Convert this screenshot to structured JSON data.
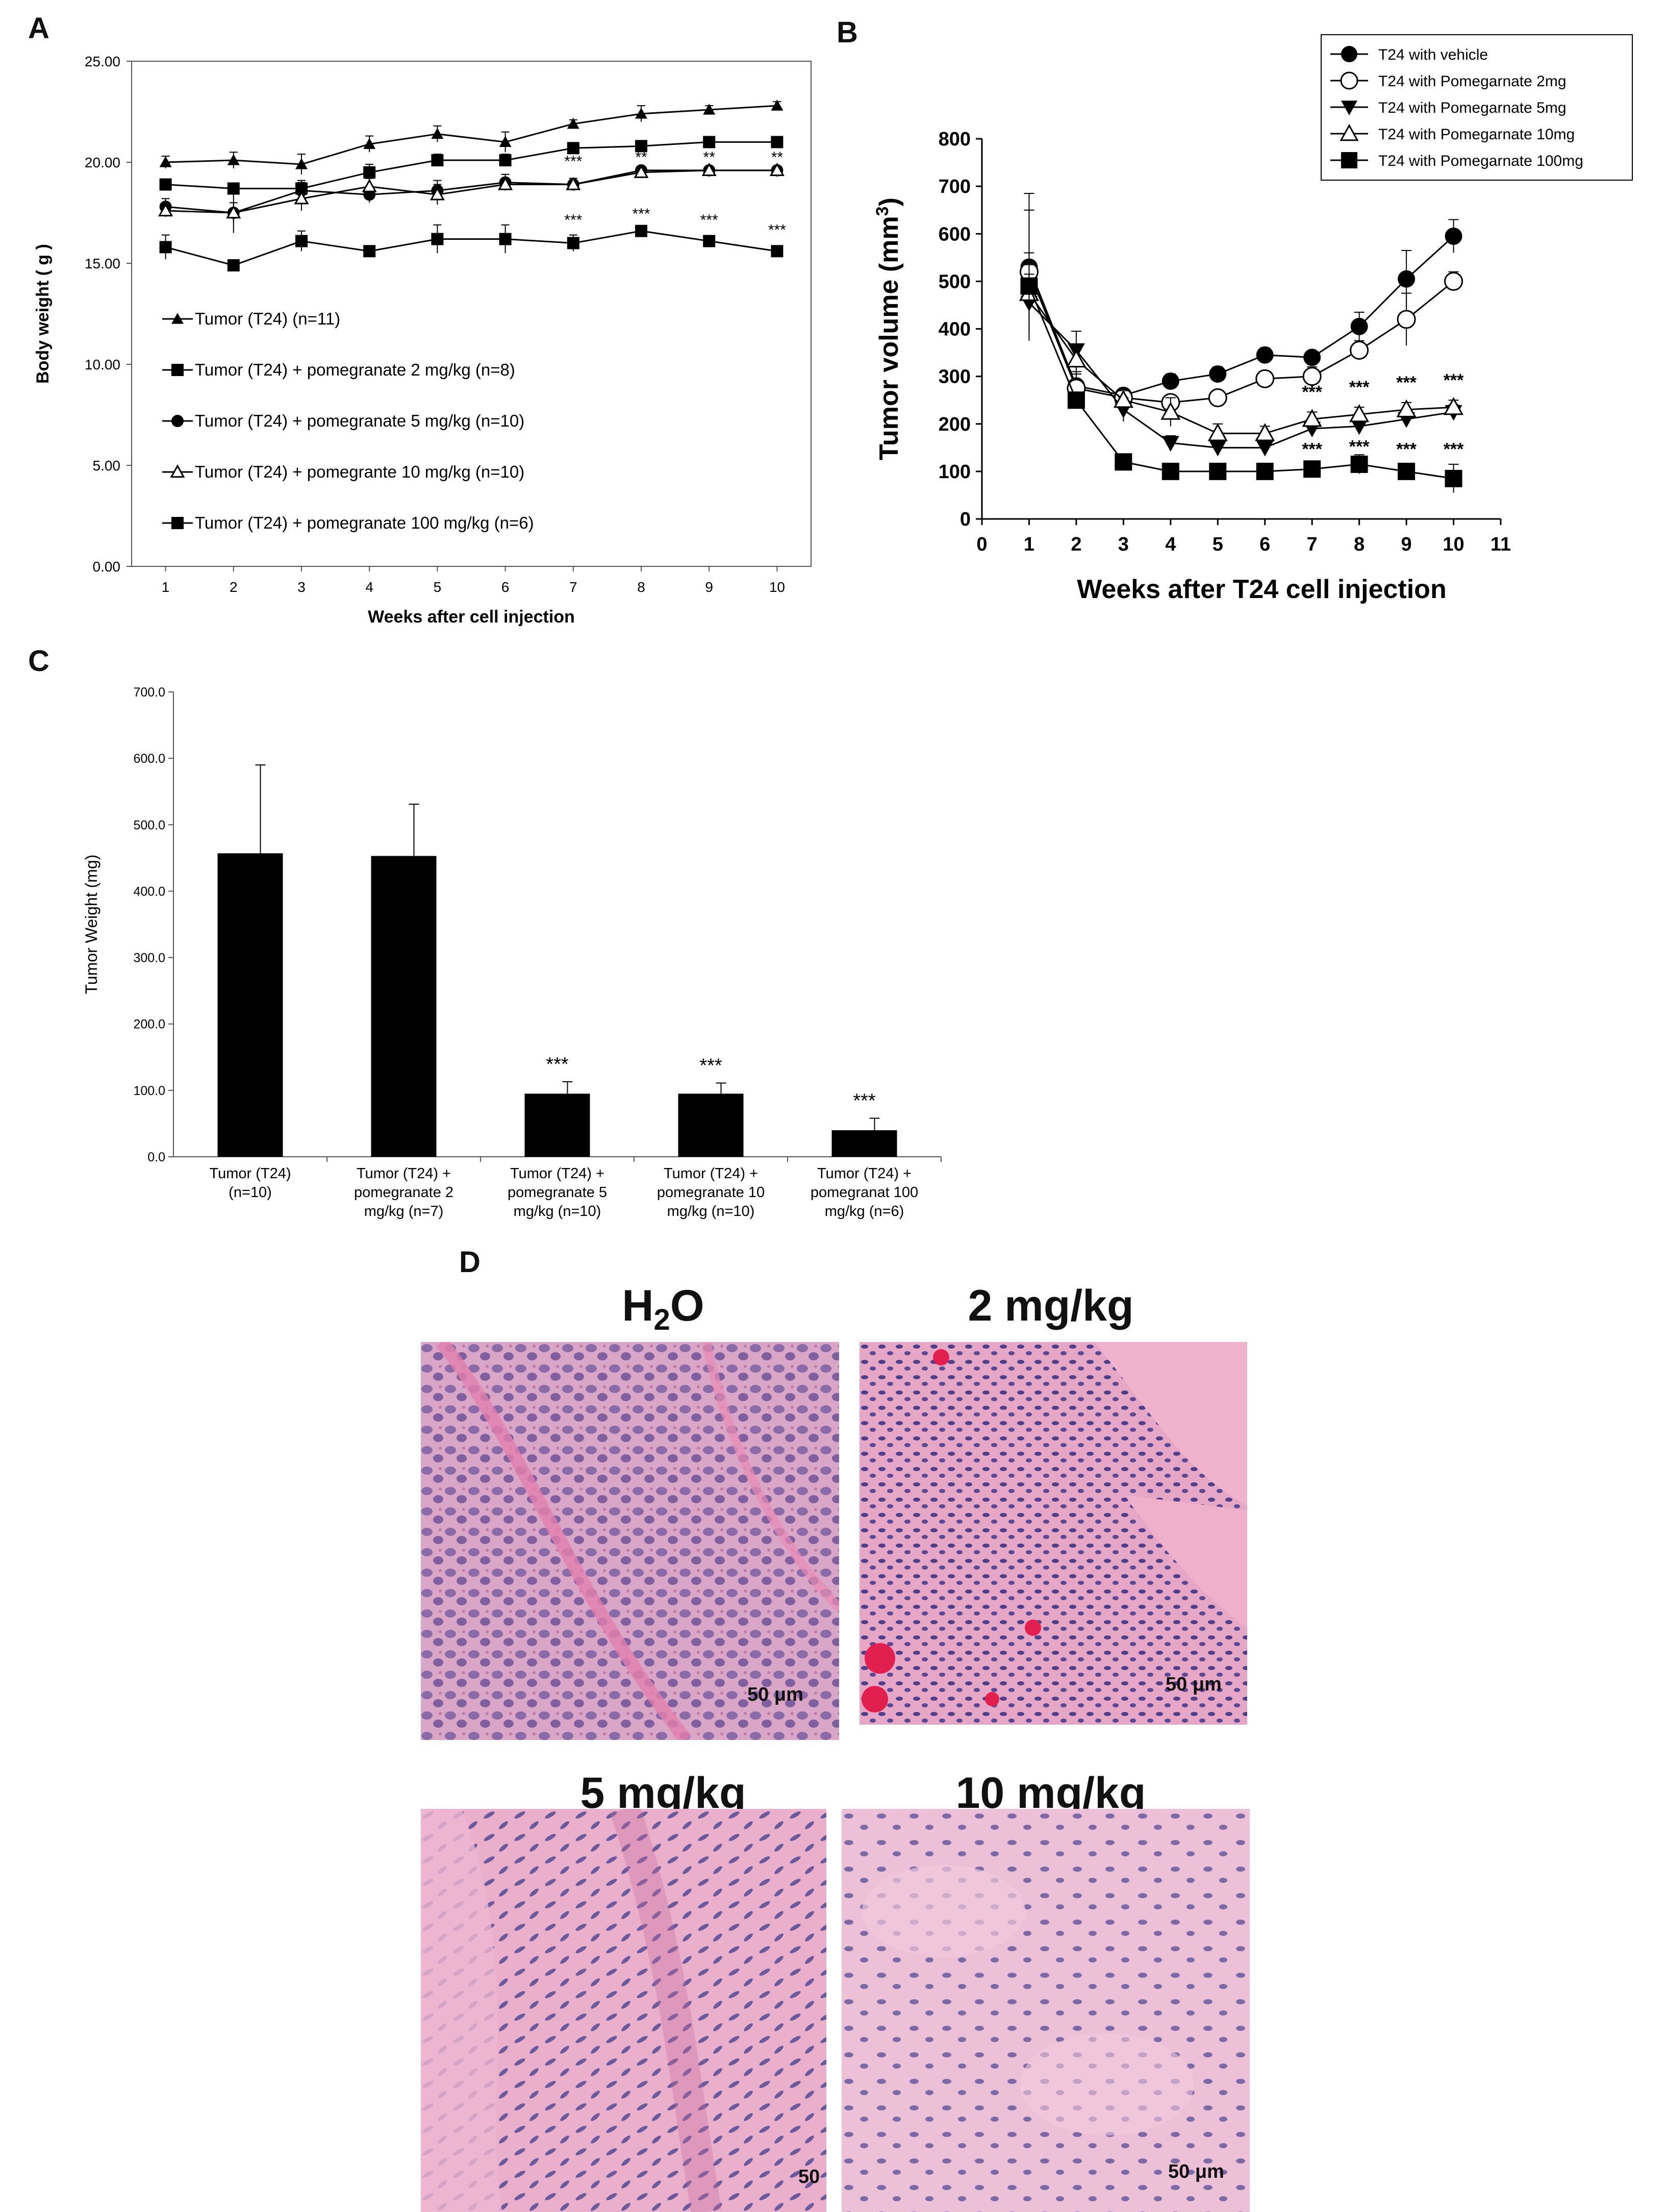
{
  "panels": {
    "a": "A",
    "b": "B",
    "c": "C",
    "d": "D"
  },
  "chart_data": [
    {
      "id": "A",
      "type": "line",
      "xlabel": "Weeks after cell injection",
      "ylabel": "Body weight ( g )",
      "x": [
        1,
        2,
        3,
        4,
        5,
        6,
        7,
        8,
        9,
        10
      ],
      "xlim": [
        0.5,
        10.5
      ],
      "ylim": [
        0,
        25
      ],
      "yticks": [
        "0.00",
        "5.00",
        "10.00",
        "15.00",
        "20.00",
        "25.00"
      ],
      "series": [
        {
          "name": "Tumor (T24) (n=11)",
          "marker": "triangle-filled",
          "values": [
            20.0,
            20.1,
            19.9,
            20.9,
            21.4,
            21.0,
            21.9,
            22.4,
            22.6,
            22.8
          ],
          "err": [
            0.3,
            0.4,
            0.5,
            0.4,
            0.4,
            0.5,
            0.2,
            0.4,
            0.2,
            0.2
          ]
        },
        {
          "name": "Tumor (T24) + pomegranate 2 mg/kg (n=8)",
          "marker": "square-filled",
          "values": [
            18.9,
            18.7,
            18.7,
            19.5,
            20.1,
            20.1,
            20.7,
            20.8,
            21.0,
            21.0
          ],
          "err": [
            0.2,
            0.2,
            0.3,
            0.4,
            0.3,
            0.3,
            0.2,
            0.2,
            0.1,
            0.1
          ]
        },
        {
          "name": "Tumor (T24) + pomegranate 5 mg/kg (n=10)",
          "marker": "circle-filled",
          "values": [
            17.8,
            17.5,
            18.6,
            18.4,
            18.6,
            19.0,
            18.9,
            19.6,
            19.6,
            19.6
          ],
          "err": [
            0.4,
            1.0,
            0.5,
            0.4,
            0.5,
            0.4,
            0.3,
            0.2,
            0.2,
            0.2
          ]
        },
        {
          "name": "Tumor (T24) + pomegrante 10 mg/kg (n=10)",
          "marker": "triangle-open",
          "values": [
            17.6,
            17.5,
            18.2,
            18.8,
            18.4,
            18.9,
            18.9,
            19.5,
            19.6,
            19.6
          ],
          "err": [
            0.3,
            0.5,
            0.6,
            0.4,
            0.5,
            0.3,
            0.3,
            0.2,
            0.2,
            0.2
          ]
        },
        {
          "name": "Tumor (T24) + pomegranate 100 mg/kg (n=6)",
          "marker": "square-filled",
          "values": [
            15.8,
            14.9,
            16.1,
            15.6,
            16.2,
            16.2,
            16.0,
            16.6,
            16.1,
            15.6
          ],
          "err": [
            0.6,
            0.2,
            0.5,
            0.2,
            0.7,
            0.7,
            0.4,
            0.2,
            0.2,
            0.2
          ]
        }
      ],
      "annotations": [
        {
          "x": 7,
          "y": 19.8,
          "text": "***"
        },
        {
          "x": 8,
          "y": 20.0,
          "text": "**"
        },
        {
          "x": 9,
          "y": 20.0,
          "text": "**"
        },
        {
          "x": 10,
          "y": 20.0,
          "text": "**"
        },
        {
          "x": 7,
          "y": 16.9,
          "text": "***"
        },
        {
          "x": 8,
          "y": 17.2,
          "text": "***"
        },
        {
          "x": 9,
          "y": 16.9,
          "text": "***"
        },
        {
          "x": 10,
          "y": 16.4,
          "text": "***"
        }
      ],
      "legend_position": "bottom-left inside plot"
    },
    {
      "id": "B",
      "type": "line",
      "xlabel": "Weeks after T24 cell injection",
      "ylabel": "Tumor volume (mm3)",
      "x": [
        1,
        2,
        3,
        4,
        5,
        6,
        7,
        8,
        9,
        10
      ],
      "xlim": [
        0,
        11
      ],
      "ylim": [
        0,
        800
      ],
      "xticks": [
        "0",
        "1",
        "2",
        "3",
        "4",
        "5",
        "6",
        "7",
        "8",
        "9",
        "10",
        "11"
      ],
      "yticks": [
        "0",
        "100",
        "200",
        "300",
        "400",
        "500",
        "600",
        "700",
        "800"
      ],
      "series": [
        {
          "name": "T24 with vehicle",
          "marker": "circle-filled",
          "values": [
            530,
            280,
            260,
            290,
            305,
            345,
            340,
            405,
            505,
            595
          ],
          "err": [
            155,
            30,
            10,
            15,
            15,
            15,
            10,
            30,
            60,
            35
          ]
        },
        {
          "name": "T24 with Pomegarnate 2mg",
          "marker": "circle-open",
          "values": [
            520,
            275,
            255,
            245,
            255,
            295,
            300,
            355,
            420,
            500
          ],
          "err": [
            130,
            30,
            10,
            12,
            15,
            15,
            20,
            20,
            55,
            20
          ]
        },
        {
          "name": "T24 with Pomegarnate 5mg",
          "marker": "triangle-down-filled",
          "values": [
            455,
            355,
            230,
            160,
            150,
            150,
            190,
            195,
            210,
            225
          ],
          "err": [
            60,
            40,
            25,
            15,
            15,
            15,
            15,
            15,
            15,
            15
          ]
        },
        {
          "name": "T24 with Pomegarnate 10mg",
          "marker": "triangle-open",
          "values": [
            475,
            335,
            250,
            225,
            180,
            180,
            210,
            220,
            230,
            235
          ],
          "err": [
            60,
            30,
            20,
            30,
            20,
            15,
            15,
            15,
            15,
            15
          ]
        },
        {
          "name": "T24 with Pomegarnate 100mg",
          "marker": "square-filled",
          "values": [
            490,
            250,
            120,
            100,
            100,
            100,
            105,
            115,
            100,
            85
          ],
          "err": [
            70,
            15,
            15,
            15,
            15,
            15,
            15,
            20,
            15,
            30
          ]
        }
      ],
      "annotations": [
        {
          "x": 7,
          "y": 255,
          "text": "***"
        },
        {
          "x": 8,
          "y": 265,
          "text": "***"
        },
        {
          "x": 9,
          "y": 275,
          "text": "***"
        },
        {
          "x": 10,
          "y": 280,
          "text": "***"
        },
        {
          "x": 7,
          "y": 135,
          "text": "***"
        },
        {
          "x": 8,
          "y": 140,
          "text": "***"
        },
        {
          "x": 9,
          "y": 135,
          "text": "***"
        },
        {
          "x": 10,
          "y": 135,
          "text": "***"
        }
      ],
      "legend_position": "top-right"
    },
    {
      "id": "C",
      "type": "bar",
      "ylabel": "Tumor Weight (mg)",
      "ylim": [
        0,
        700
      ],
      "yticks": [
        "0.0",
        "100.0",
        "200.0",
        "300.0",
        "400.0",
        "500.0",
        "600.0",
        "700.0"
      ],
      "categories": [
        [
          "Tumor (T24)",
          "(n=10)"
        ],
        [
          "Tumor (T24) +",
          "pomegranate 2",
          "mg/kg (n=7)"
        ],
        [
          "Tumor (T24) +",
          "pomegranate 5",
          "mg/kg (n=10)"
        ],
        [
          "Tumor (T24) +",
          "pomegranate 10",
          "mg/kg (n=10)"
        ],
        [
          "Tumor (T24) +",
          "pomegranat 100",
          "mg/kg (n=6)"
        ]
      ],
      "values": [
        457,
        453,
        95,
        95,
        40
      ],
      "err": [
        133,
        78,
        18,
        16,
        18
      ],
      "significance": [
        "",
        "",
        "***",
        "***",
        "***"
      ]
    }
  ],
  "histology": {
    "panels": [
      {
        "title": "H₂O",
        "scale": "50 μm"
      },
      {
        "title": "2 mg/kg",
        "scale": "50 μm"
      },
      {
        "title": "5 mg/kg",
        "scale": "50"
      },
      {
        "title": "10 mg/kg",
        "scale": "50 μm"
      }
    ]
  }
}
